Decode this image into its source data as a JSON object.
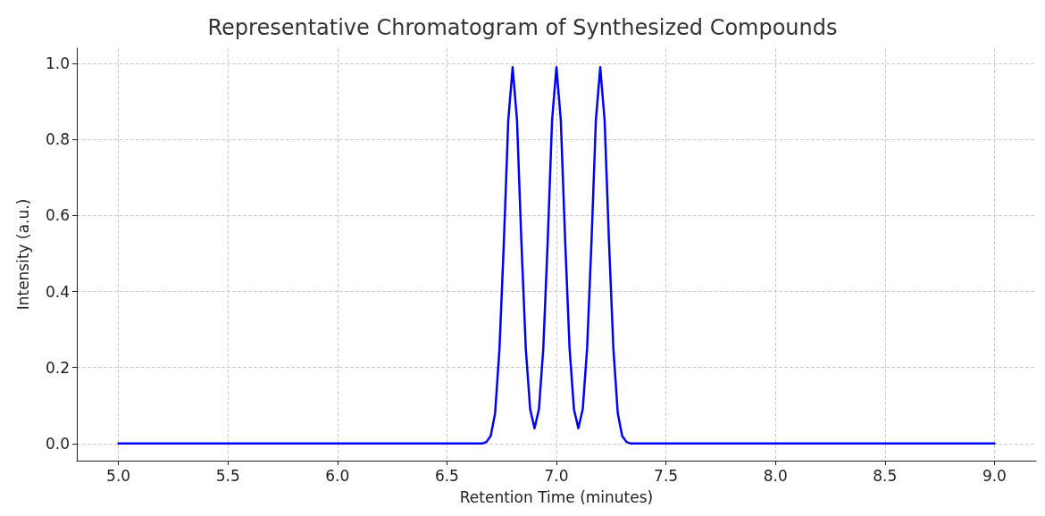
{
  "chart_data": {
    "type": "line",
    "title": "Representative Chromatogram of Synthesized Compounds",
    "xlabel": "Retention Time (minutes)",
    "ylabel": "Intensity (a.u.)",
    "xlim": [
      4.81,
      9.19
    ],
    "ylim": [
      -0.045,
      1.04
    ],
    "xticks": [
      {
        "value": 5,
        "label": "5.0"
      },
      {
        "value": 5.5,
        "label": "5.5"
      },
      {
        "value": 6,
        "label": "6.0"
      },
      {
        "value": 6.5,
        "label": "6.5"
      },
      {
        "value": 7,
        "label": "7.0"
      },
      {
        "value": 7.5,
        "label": "7.5"
      },
      {
        "value": 8,
        "label": "8.0"
      },
      {
        "value": 8.5,
        "label": "8.5"
      },
      {
        "value": 9,
        "label": "9.0"
      }
    ],
    "yticks": [
      {
        "value": 0,
        "label": "0.0"
      },
      {
        "value": 0.2,
        "label": "0.2"
      },
      {
        "value": 0.4,
        "label": "0.4"
      },
      {
        "value": 0.6,
        "label": "0.6"
      },
      {
        "value": 0.8,
        "label": "0.8"
      },
      {
        "value": 1,
        "label": "1.0"
      }
    ],
    "grid": true,
    "marker": "none",
    "line_style": "solid",
    "x": [
      5.0,
      6.6,
      6.66,
      6.68,
      6.7,
      6.72,
      6.74,
      6.76,
      6.78,
      6.8,
      6.82,
      6.84,
      6.86,
      6.88,
      6.9,
      6.92,
      6.94,
      6.96,
      6.98,
      7.0,
      7.02,
      7.04,
      7.06,
      7.08,
      7.1,
      7.12,
      7.14,
      7.16,
      7.18,
      7.2,
      7.22,
      7.24,
      7.26,
      7.28,
      7.3,
      7.32,
      7.34,
      7.4,
      9.0
    ],
    "series": [
      {
        "color": "#0000ff",
        "values": [
          0,
          0,
          0,
          0.004,
          0.02,
          0.08,
          0.25,
          0.53,
          0.85,
          0.99,
          0.85,
          0.53,
          0.25,
          0.09,
          0.04,
          0.09,
          0.25,
          0.53,
          0.85,
          0.99,
          0.85,
          0.53,
          0.25,
          0.09,
          0.04,
          0.09,
          0.25,
          0.53,
          0.85,
          0.99,
          0.85,
          0.53,
          0.25,
          0.08,
          0.02,
          0.004,
          0,
          0,
          0
        ]
      }
    ]
  }
}
